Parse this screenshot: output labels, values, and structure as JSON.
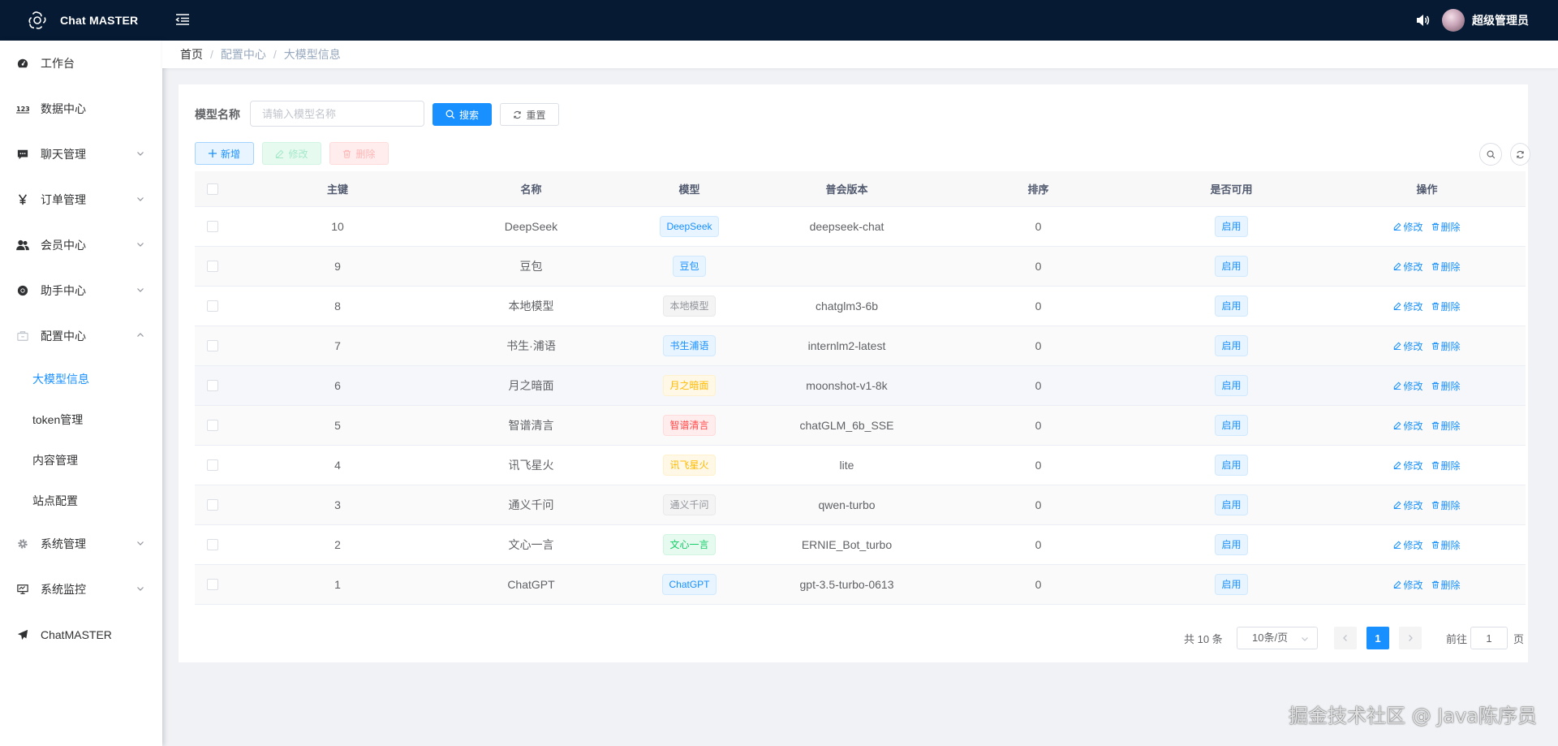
{
  "app": {
    "title": "Chat MASTER",
    "user": "超级管理员"
  },
  "sidebar": {
    "items": [
      {
        "label": "工作台",
        "icon": "dashboard-icon",
        "has_arrow": false
      },
      {
        "label": "数据中心",
        "icon": "number-icon",
        "has_arrow": false
      },
      {
        "label": "聊天管理",
        "icon": "message-icon",
        "has_arrow": true
      },
      {
        "label": "订单管理",
        "icon": "yen-icon",
        "has_arrow": true
      },
      {
        "label": "会员中心",
        "icon": "peoples-icon",
        "has_arrow": true
      },
      {
        "label": "助手中心",
        "icon": "chrome-icon",
        "has_arrow": true
      },
      {
        "label": "配置中心",
        "icon": "build-icon",
        "has_arrow": true,
        "expanded": true
      }
    ],
    "sub_items": [
      "大模型信息",
      "token管理",
      "内容管理",
      "站点配置"
    ],
    "items_after": [
      {
        "label": "系统管理",
        "icon": "gear-icon",
        "has_arrow": true
      },
      {
        "label": "系统监控",
        "icon": "monitor-icon",
        "has_arrow": true
      },
      {
        "label": "ChatMASTER",
        "icon": "send-icon",
        "has_arrow": false
      }
    ]
  },
  "breadcrumb": [
    "首页",
    "配置中心",
    "大模型信息"
  ],
  "search": {
    "label": "模型名称",
    "placeholder": "请输入模型名称",
    "search_btn": "搜索",
    "reset_btn": "重置"
  },
  "toolbar": {
    "add": "新增",
    "edit": "修改",
    "delete": "删除"
  },
  "table": {
    "columns": [
      "主键",
      "名称",
      "模型",
      "普会版本",
      "排序",
      "是否可用",
      "操作"
    ],
    "rows": [
      {
        "id": "10",
        "name": "DeepSeek",
        "model": "DeepSeek",
        "tag": "blue",
        "version": "deepseek-chat",
        "sort": "0",
        "status": "启用"
      },
      {
        "id": "9",
        "name": "豆包",
        "model": "豆包",
        "tag": "blue",
        "version": "",
        "sort": "0",
        "status": "启用"
      },
      {
        "id": "8",
        "name": "本地模型",
        "model": "本地模型",
        "tag": "gray",
        "version": "chatglm3-6b",
        "sort": "0",
        "status": "启用"
      },
      {
        "id": "7",
        "name": "书生·浦语",
        "model": "书生浦语",
        "tag": "blue",
        "version": "internlm2-latest",
        "sort": "0",
        "status": "启用"
      },
      {
        "id": "6",
        "name": "月之暗面",
        "model": "月之暗面",
        "tag": "yellow",
        "version": "moonshot-v1-8k",
        "sort": "0",
        "status": "启用"
      },
      {
        "id": "5",
        "name": "智谱清言",
        "model": "智谱清言",
        "tag": "red",
        "version": "chatGLM_6b_SSE",
        "sort": "0",
        "status": "启用"
      },
      {
        "id": "4",
        "name": "讯飞星火",
        "model": "讯飞星火",
        "tag": "yellow",
        "version": "lite",
        "sort": "0",
        "status": "启用"
      },
      {
        "id": "3",
        "name": "通义千问",
        "model": "通义千问",
        "tag": "gray",
        "version": "qwen-turbo",
        "sort": "0",
        "status": "启用"
      },
      {
        "id": "2",
        "name": "文心一言",
        "model": "文心一言",
        "tag": "green",
        "version": "ERNIE_Bot_turbo",
        "sort": "0",
        "status": "启用"
      },
      {
        "id": "1",
        "name": "ChatGPT",
        "model": "ChatGPT",
        "tag": "blue",
        "version": "gpt-3.5-turbo-0613",
        "sort": "0",
        "status": "启用"
      }
    ],
    "op_edit": "修改",
    "op_delete": "删除"
  },
  "pagination": {
    "total_text": "共 10 条",
    "page_size": "10条/页",
    "current": "1",
    "goto_prefix": "前往",
    "goto_value": "1",
    "goto_suffix": "页"
  },
  "watermark": "掘金技术社区 @ Java陈序员",
  "colors": {
    "topbar": "#061a33",
    "primary": "#1890ff"
  }
}
